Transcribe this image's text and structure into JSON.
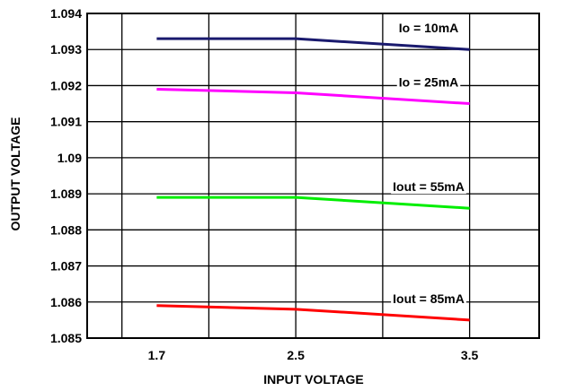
{
  "chart_data": {
    "type": "line",
    "xlabel": "INPUT VOLTAGE",
    "ylabel": "OUTPUT VOLTAGE",
    "x": [
      1.7,
      2.5,
      3.5
    ],
    "x_tick_labels": [
      "1.7",
      "2.5",
      "3.5"
    ],
    "xlim": [
      1.3,
      3.9
    ],
    "ylim": [
      1.085,
      1.094
    ],
    "y_tick_labels": [
      "1.085",
      "1.086",
      "1.087",
      "1.088",
      "1.089",
      "1.09",
      "1.091",
      "1.092",
      "1.093",
      "1.094"
    ],
    "grid": true,
    "series": [
      {
        "name": "Io = 10mA",
        "values": [
          1.0933,
          1.0933,
          1.093
        ],
        "color": "#1a1a6e"
      },
      {
        "name": "Io = 25mA",
        "values": [
          1.0919,
          1.0918,
          1.0915
        ],
        "color": "#ff00ff"
      },
      {
        "name": "Iout = 55mA",
        "values": [
          1.0889,
          1.0889,
          1.0886
        ],
        "color": "#00ee00"
      },
      {
        "name": "Iout = 85mA",
        "values": [
          1.0859,
          1.0858,
          1.0855
        ],
        "color": "#ff0000"
      }
    ]
  }
}
